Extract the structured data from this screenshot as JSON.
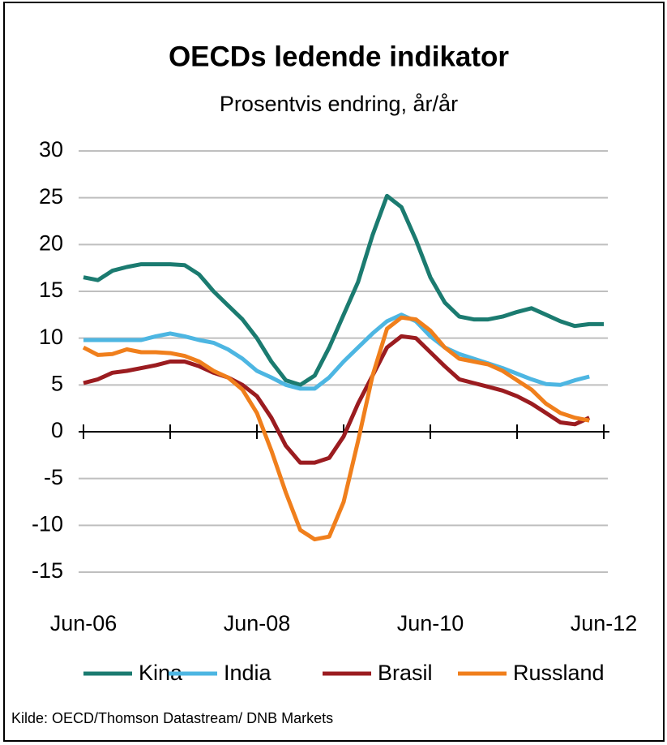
{
  "chart_data": {
    "type": "line",
    "title": "OECDs ledende indikator",
    "subtitle": "Prosentvis endring, år/år",
    "source": "Kilde: OECD/Thomson Datastream/ DNB Markets",
    "categories": [
      "Jun-06",
      null,
      null,
      null,
      null,
      null,
      null,
      null,
      null,
      null,
      null,
      null,
      "Jun-08",
      null,
      null,
      null,
      null,
      null,
      null,
      null,
      null,
      null,
      null,
      null,
      "Jun-10",
      null,
      null,
      null,
      null,
      null,
      null,
      null,
      null,
      null,
      null,
      null,
      "Jun-12"
    ],
    "series": [
      {
        "name": "Kina",
        "color": "#1b7b70",
        "values": [
          16.5,
          16.2,
          17.2,
          17.6,
          17.9,
          17.9,
          17.9,
          17.8,
          16.8,
          15.0,
          13.5,
          12.0,
          10.0,
          7.5,
          5.5,
          5.0,
          6.0,
          9.0,
          12.5,
          16.0,
          21.0,
          25.2,
          24.0,
          20.5,
          16.5,
          13.8,
          12.3,
          12.0,
          12.0,
          12.3,
          12.8,
          13.2,
          12.5,
          11.8,
          11.3,
          11.5,
          11.5
        ]
      },
      {
        "name": "India",
        "color": "#4db6e2",
        "values": [
          9.8,
          9.8,
          9.8,
          9.8,
          9.8,
          10.2,
          10.5,
          10.2,
          9.8,
          9.5,
          8.8,
          7.8,
          6.5,
          5.8,
          5.0,
          4.6,
          4.6,
          5.8,
          7.5,
          9.0,
          10.5,
          11.8,
          12.5,
          11.8,
          10.2,
          9.0,
          8.3,
          7.8,
          7.3,
          6.8,
          6.2,
          5.6,
          5.1,
          5.0,
          5.5,
          5.9,
          null
        ]
      },
      {
        "name": "Brasil",
        "color": "#9b1c20",
        "values": [
          5.2,
          5.6,
          6.3,
          6.5,
          6.8,
          7.1,
          7.5,
          7.5,
          7.0,
          6.3,
          5.8,
          5.0,
          3.8,
          1.5,
          -1.5,
          -3.3,
          -3.3,
          -2.8,
          -0.5,
          3.0,
          6.0,
          9.0,
          10.2,
          10.0,
          8.5,
          7.0,
          5.6,
          5.2,
          4.8,
          4.4,
          3.8,
          3.0,
          2.0,
          1.0,
          0.8,
          1.5,
          null
        ]
      },
      {
        "name": "Russland",
        "color": "#f07f1c",
        "values": [
          9.0,
          8.2,
          8.3,
          8.8,
          8.5,
          8.5,
          8.4,
          8.1,
          7.5,
          6.5,
          5.8,
          4.5,
          2.0,
          -2.0,
          -6.5,
          -10.5,
          -11.5,
          -11.2,
          -7.5,
          -1.0,
          6.0,
          11.0,
          12.2,
          12.0,
          10.8,
          9.0,
          7.8,
          7.5,
          7.2,
          6.5,
          5.5,
          4.5,
          3.0,
          2.0,
          1.5,
          1.2,
          null
        ]
      }
    ],
    "ylim": [
      -15,
      30
    ],
    "yticks": [
      -15,
      -10,
      -5,
      0,
      5,
      10,
      15,
      20,
      25,
      30
    ],
    "grid": true
  }
}
